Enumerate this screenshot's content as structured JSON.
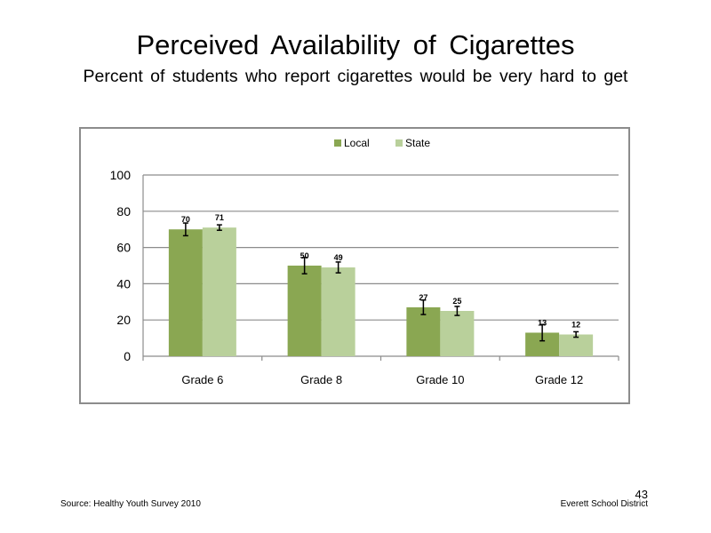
{
  "slide": {
    "title": "Perceived  Availability  of Cigarettes",
    "subtitle": "Percent of students who report cigarettes would be very hard to get",
    "page_number": "43",
    "source": "Source: Healthy Youth Survey 2010",
    "district": "Everett School District"
  },
  "chart_data": {
    "type": "bar",
    "categories": [
      "Grade 6",
      "Grade 8",
      "Grade 10",
      "Grade 12"
    ],
    "series": [
      {
        "name": "Local",
        "color": "#8aa752",
        "values": [
          70,
          50,
          27,
          13
        ],
        "error": [
          3.5,
          4.5,
          4.0,
          4.5
        ]
      },
      {
        "name": "State",
        "color": "#b9d09b",
        "values": [
          71,
          49,
          25,
          12
        ],
        "error": [
          1.5,
          3.0,
          2.5,
          1.5
        ]
      }
    ],
    "ylim": [
      0,
      100
    ],
    "yticks": [
      0,
      20,
      40,
      60,
      80,
      100
    ],
    "grid": true,
    "legend": "top-center",
    "data_labels": true,
    "error_bars": true
  }
}
